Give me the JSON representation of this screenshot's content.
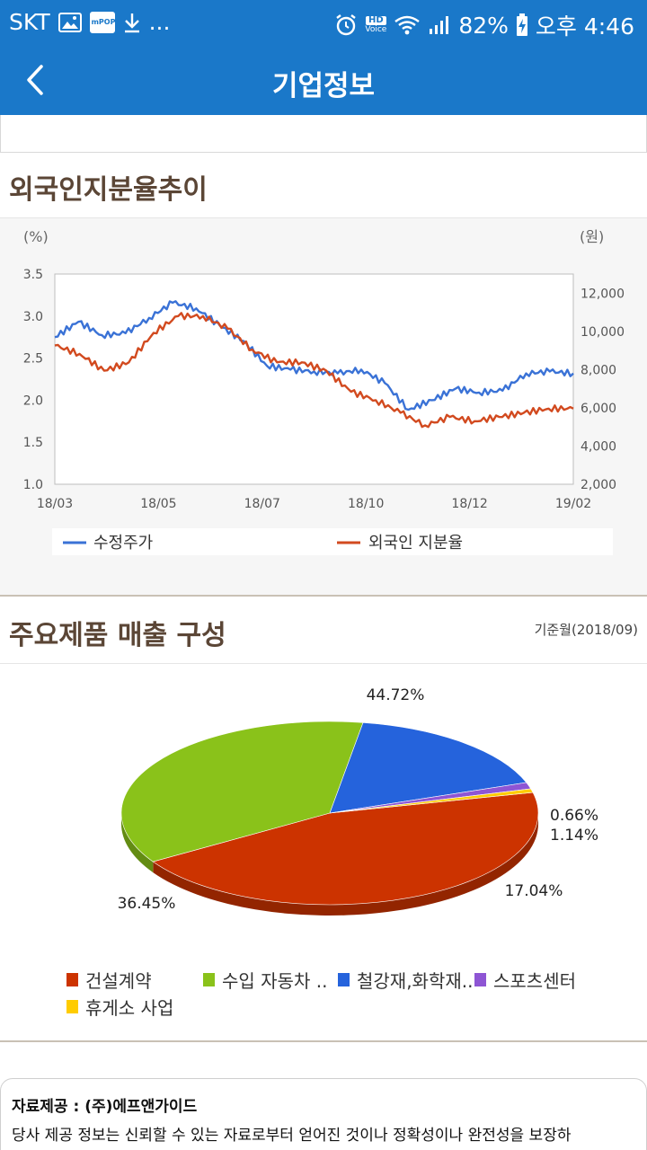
{
  "status_bar": {
    "carrier": "SKT",
    "more": "...",
    "battery": "82%",
    "time": "오후 4:46",
    "hd_label": "HD",
    "voice_label": "Voice",
    "mpop_label": "mPOP",
    "color": "#1a78c9"
  },
  "header": {
    "title": "기업정보",
    "back_icon": "chevron-left-icon",
    "color": "#1a78c9"
  },
  "sections": {
    "foreign": {
      "title": "외국인지분율추이"
    },
    "products": {
      "title": "주요제품 매출 구성",
      "base_month": "기준월(2018/09)"
    }
  },
  "chart_data": [
    {
      "type": "line",
      "left_unit": "(%)",
      "right_unit": "(원)",
      "x_ticks": [
        "18/03",
        "18/05",
        "18/07",
        "18/10",
        "18/12",
        "19/02"
      ],
      "y_left_ticks": [
        "3.5",
        "3.0",
        "2.5",
        "2.0",
        "1.5",
        "1.0"
      ],
      "y_right_ticks": [
        "12,000",
        "10,000",
        "8,000",
        "6,000",
        "4,000",
        "2,000"
      ],
      "ylim_left": [
        1.0,
        3.5
      ],
      "ylim_right": [
        2000,
        13000
      ],
      "grid": false,
      "legend_position": "bottom",
      "series": [
        {
          "name": "수정주가",
          "axis": "right",
          "color": "#3a72d6",
          "x": [
            "18/03",
            "18/03",
            "18/04",
            "18/04",
            "18/05",
            "18/05",
            "18/05",
            "18/06",
            "18/06",
            "18/07",
            "18/07",
            "18/08",
            "18/09",
            "18/10",
            "18/10",
            "18/11",
            "18/11",
            "18/12",
            "18/12",
            "19/01",
            "19/01",
            "19/02",
            "19/02"
          ],
          "values": [
            9700,
            10500,
            9800,
            9900,
            10700,
            11500,
            11200,
            10300,
            9500,
            8200,
            8000,
            7900,
            7800,
            8000,
            7300,
            5900,
            6400,
            7000,
            6800,
            6900,
            7800,
            7900,
            7800
          ]
        },
        {
          "name": "외국인 지분율",
          "axis": "left",
          "color": "#d24a1f",
          "x": [
            "18/03",
            "18/03",
            "18/04",
            "18/04",
            "18/05",
            "18/05",
            "18/06",
            "18/06",
            "18/07",
            "18/07",
            "18/08",
            "18/09",
            "18/10",
            "18/10",
            "18/11",
            "18/11",
            "18/12",
            "18/12",
            "19/01",
            "19/01",
            "19/02",
            "19/02"
          ],
          "values": [
            2.65,
            2.55,
            2.35,
            2.45,
            2.8,
            3.0,
            3.0,
            2.85,
            2.6,
            2.45,
            2.45,
            2.35,
            2.1,
            2.0,
            1.85,
            1.7,
            1.8,
            1.75,
            1.8,
            1.85,
            1.9,
            1.9
          ]
        }
      ]
    },
    {
      "type": "pie",
      "legend_position": "bottom",
      "slices": [
        {
          "label": "건설계약",
          "value": 44.72,
          "display": "44.72%",
          "color": "#cc3300"
        },
        {
          "label": "수입 자동차 ..",
          "value": 36.45,
          "display": "36.45%",
          "color": "#8ac21a"
        },
        {
          "label": "철강재,화학재..",
          "value": 17.04,
          "display": "17.04%",
          "color": "#2563dc"
        },
        {
          "label": "스포츠센터",
          "value": 1.14,
          "display": "1.14%",
          "color": "#8e55d4"
        },
        {
          "label": "휴게소 사업",
          "value": 0.66,
          "display": "0.66%",
          "color": "#ffcc00"
        }
      ]
    }
  ],
  "source": {
    "title": "자료제공 : (주)에프앤가이드",
    "text": "당사 제공 정보는 신뢰할 수 있는 자료로부터 얻어진 것이나 정확성이나 완전성을 보장하"
  }
}
